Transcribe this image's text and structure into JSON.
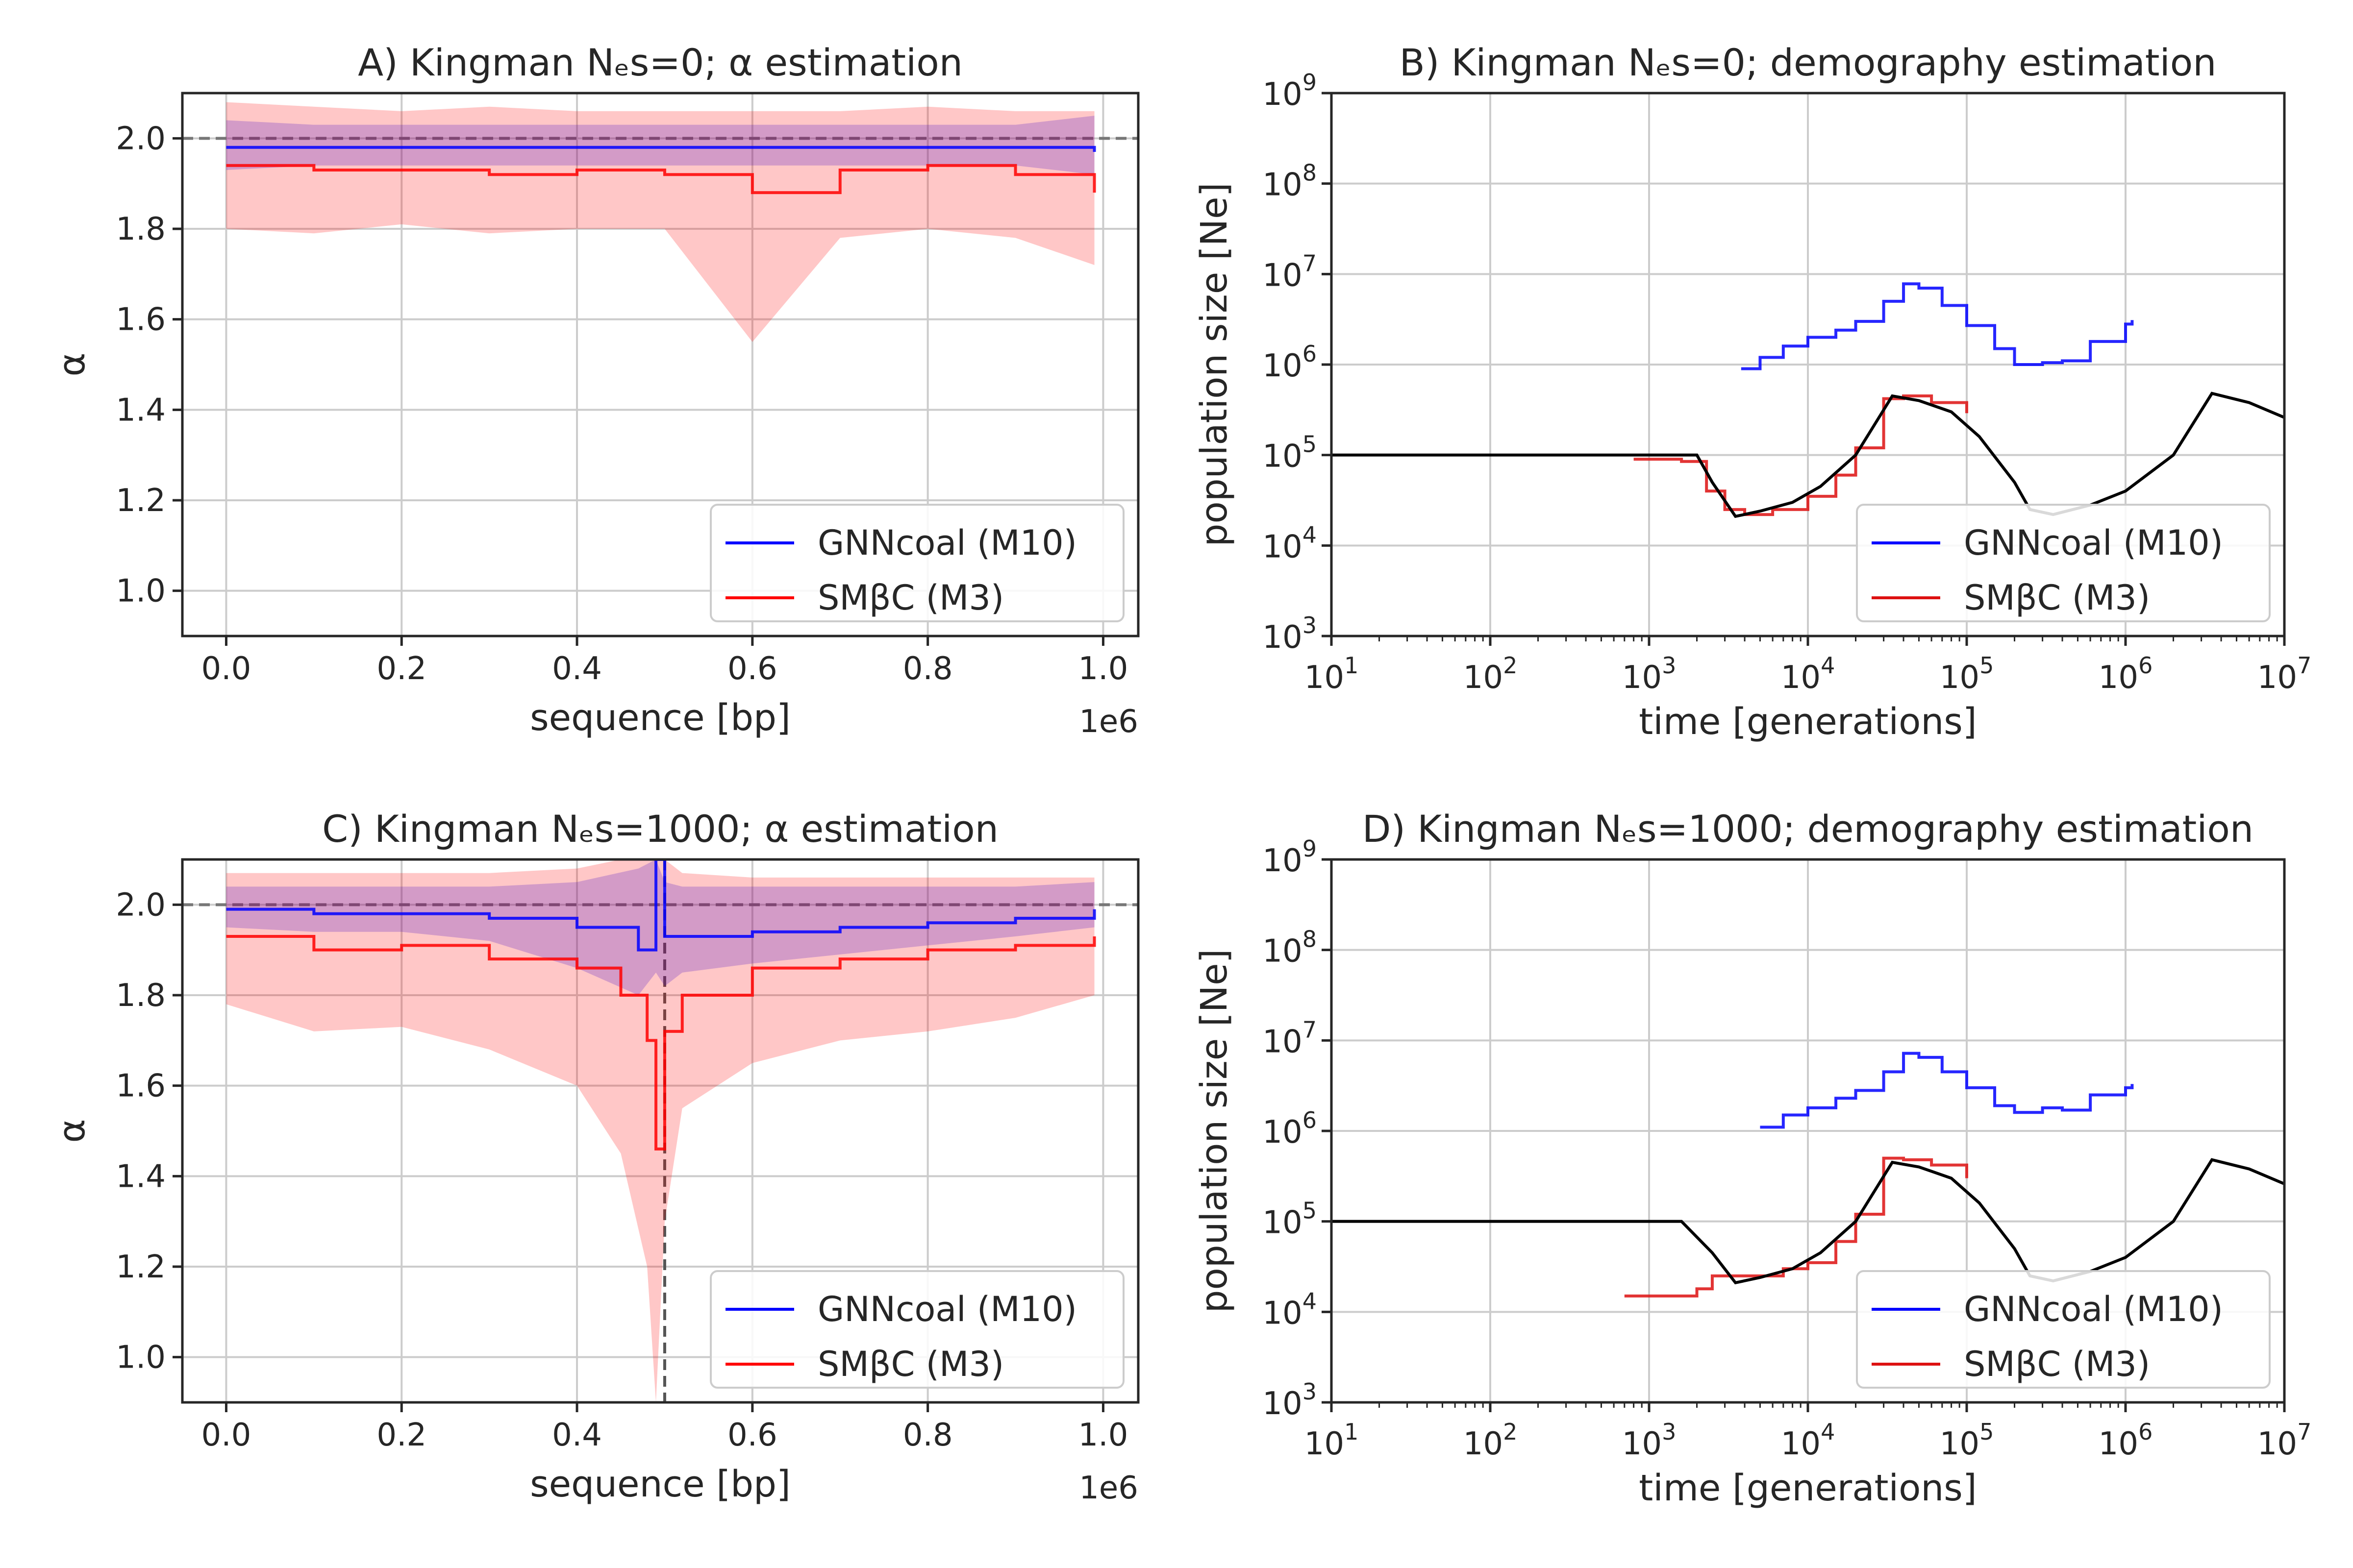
{
  "chart_data": [
    {
      "panel": "A",
      "type": "line",
      "title": "A) Kingman Nₑs=0; α estimation",
      "xlabel": "sequence [bp]",
      "ylabel": "α",
      "x_offset_label": "1e6",
      "xlim": [
        -0.05,
        1.04
      ],
      "ylim": [
        0.9,
        2.1
      ],
      "xticks": [
        "0.0",
        "0.2",
        "0.4",
        "0.6",
        "0.8",
        "1.0"
      ],
      "yticks": [
        "1.0",
        "1.2",
        "1.4",
        "1.6",
        "1.8",
        "2.0"
      ],
      "grid": true,
      "legend_position": "lower right",
      "reference_lines": [
        {
          "orientation": "horizontal",
          "value": 2.0,
          "style": "dashed",
          "color": "#777777"
        }
      ],
      "series": [
        {
          "name": "GNNcoal (M10)",
          "color": "#0000ff",
          "x": [
            0.0,
            0.1,
            0.2,
            0.3,
            0.4,
            0.5,
            0.6,
            0.7,
            0.8,
            0.9,
            0.99
          ],
          "values": [
            1.98,
            1.98,
            1.98,
            1.98,
            1.98,
            1.98,
            1.98,
            1.98,
            1.98,
            1.98,
            1.97
          ],
          "band_low": [
            1.93,
            1.94,
            1.94,
            1.94,
            1.94,
            1.94,
            1.94,
            1.94,
            1.94,
            1.94,
            1.92
          ],
          "band_high": [
            2.04,
            2.03,
            2.03,
            2.03,
            2.03,
            2.03,
            2.03,
            2.03,
            2.03,
            2.03,
            2.05
          ]
        },
        {
          "name": "SMβC (M3)",
          "color": "#ff0000",
          "x": [
            0.0,
            0.1,
            0.2,
            0.3,
            0.4,
            0.5,
            0.6,
            0.7,
            0.8,
            0.9,
            0.99
          ],
          "values": [
            1.94,
            1.93,
            1.93,
            1.92,
            1.93,
            1.92,
            1.88,
            1.93,
            1.94,
            1.92,
            1.88
          ],
          "band_low": [
            1.8,
            1.79,
            1.81,
            1.79,
            1.8,
            1.8,
            1.55,
            1.78,
            1.8,
            1.78,
            1.72
          ],
          "band_high": [
            2.08,
            2.07,
            2.06,
            2.07,
            2.06,
            2.06,
            2.06,
            2.06,
            2.07,
            2.06,
            2.06
          ]
        }
      ]
    },
    {
      "panel": "B",
      "type": "line",
      "title": "B) Kingman Nₑs=0; demography estimation",
      "xlabel": "time [generations]",
      "ylabel": "population size [Ne]",
      "xscale": "log",
      "yscale": "log",
      "xlim": [
        10,
        10000000
      ],
      "ylim": [
        1000,
        1000000000
      ],
      "xticks": [
        "10^1",
        "10^2",
        "10^3",
        "10^4",
        "10^5",
        "10^6",
        "10^7"
      ],
      "yticks": [
        "10^3",
        "10^4",
        "10^5",
        "10^6",
        "10^7",
        "10^8",
        "10^9"
      ],
      "grid": true,
      "legend_position": "lower right",
      "series": [
        {
          "name": "GNNcoal (M10)",
          "color": "#0000ff",
          "x": [
            3800,
            5000,
            7000,
            10000,
            15000,
            20000,
            30000,
            40000,
            50000,
            70000,
            100000,
            150000,
            200000,
            300000,
            400000,
            600000,
            1000000,
            1100000
          ],
          "values": [
            900000,
            1200000,
            1600000,
            2000000,
            2400000,
            3000000,
            5000000,
            7800000,
            7000000,
            4500000,
            2700000,
            1500000,
            1000000,
            1050000,
            1100000,
            1800000,
            2800000,
            3100000
          ]
        },
        {
          "name": "SMβC (M3)",
          "color": "#dd1111",
          "x": [
            800,
            1600,
            2300,
            3000,
            4000,
            6000,
            10000,
            15000,
            20000,
            30000,
            40000,
            60000,
            100000
          ],
          "values": [
            90000,
            85000,
            40000,
            25000,
            22000,
            25000,
            35000,
            60000,
            120000,
            420000,
            450000,
            380000,
            290000
          ]
        },
        {
          "name": "",
          "color": "#000000",
          "x": [
            10,
            2000,
            2500,
            3500,
            5000,
            8000,
            12000,
            20000,
            34000,
            50000,
            80000,
            120000,
            200000,
            250000,
            350000,
            600000,
            1000000,
            2000000,
            3500000,
            6000000,
            10000000
          ],
          "values": [
            100000,
            100000,
            50000,
            21000,
            24000,
            30000,
            45000,
            100000,
            450000,
            400000,
            300000,
            160000,
            50000,
            25000,
            22000,
            28000,
            40000,
            100000,
            480000,
            380000,
            260000
          ]
        }
      ]
    },
    {
      "panel": "C",
      "type": "line",
      "title": "C) Kingman Nₑs=1000; α estimation",
      "xlabel": "sequence [bp]",
      "ylabel": "α",
      "x_offset_label": "1e6",
      "xlim": [
        -0.05,
        1.04
      ],
      "ylim": [
        0.9,
        2.1
      ],
      "xticks": [
        "0.0",
        "0.2",
        "0.4",
        "0.6",
        "0.8",
        "1.0"
      ],
      "yticks": [
        "1.0",
        "1.2",
        "1.4",
        "1.6",
        "1.8",
        "2.0"
      ],
      "grid": true,
      "legend_position": "lower right",
      "reference_lines": [
        {
          "orientation": "horizontal",
          "value": 2.0,
          "style": "dashed",
          "color": "#777777"
        },
        {
          "orientation": "vertical",
          "value": 0.5,
          "style": "dashed",
          "color": "#555555"
        }
      ],
      "series": [
        {
          "name": "GNNcoal (M10)",
          "color": "#0000ff",
          "x": [
            0.0,
            0.1,
            0.2,
            0.3,
            0.4,
            0.47,
            0.49,
            0.5,
            0.52,
            0.6,
            0.7,
            0.8,
            0.9,
            0.99
          ],
          "values": [
            1.99,
            1.98,
            1.98,
            1.97,
            1.95,
            1.9,
            2.1,
            1.93,
            1.93,
            1.94,
            1.95,
            1.96,
            1.97,
            1.99
          ],
          "band_low": [
            1.95,
            1.94,
            1.94,
            1.92,
            1.86,
            1.8,
            1.85,
            1.82,
            1.85,
            1.87,
            1.89,
            1.91,
            1.93,
            1.95
          ],
          "band_high": [
            2.04,
            2.04,
            2.04,
            2.04,
            2.05,
            2.08,
            2.1,
            2.05,
            2.04,
            2.04,
            2.04,
            2.04,
            2.04,
            2.05
          ]
        },
        {
          "name": "SMβC (M3)",
          "color": "#ff0000",
          "x": [
            0.0,
            0.1,
            0.2,
            0.3,
            0.4,
            0.45,
            0.48,
            0.49,
            0.5,
            0.52,
            0.6,
            0.7,
            0.8,
            0.9,
            0.99
          ],
          "values": [
            1.93,
            1.9,
            1.91,
            1.88,
            1.86,
            1.8,
            1.7,
            1.46,
            1.72,
            1.8,
            1.86,
            1.88,
            1.9,
            1.91,
            1.93
          ],
          "band_low": [
            1.78,
            1.72,
            1.73,
            1.68,
            1.6,
            1.45,
            1.2,
            0.9,
            1.3,
            1.55,
            1.65,
            1.7,
            1.72,
            1.75,
            1.8
          ],
          "band_high": [
            2.07,
            2.07,
            2.07,
            2.07,
            2.08,
            2.1,
            2.1,
            2.1,
            2.1,
            2.07,
            2.06,
            2.06,
            2.06,
            2.06,
            2.06
          ]
        }
      ]
    },
    {
      "panel": "D",
      "type": "line",
      "title": "D) Kingman Nₑs=1000; demography estimation",
      "xlabel": "time [generations]",
      "ylabel": "population size [Ne]",
      "xscale": "log",
      "yscale": "log",
      "xlim": [
        10,
        10000000
      ],
      "ylim": [
        1000,
        1000000000
      ],
      "xticks": [
        "10^1",
        "10^2",
        "10^3",
        "10^4",
        "10^5",
        "10^6",
        "10^7"
      ],
      "yticks": [
        "10^3",
        "10^4",
        "10^5",
        "10^6",
        "10^7",
        "10^8",
        "10^9"
      ],
      "grid": true,
      "legend_position": "lower right",
      "series": [
        {
          "name": "GNNcoal (M10)",
          "color": "#0000ff",
          "x": [
            5000,
            7000,
            10000,
            15000,
            20000,
            30000,
            40000,
            50000,
            70000,
            100000,
            150000,
            200000,
            300000,
            400000,
            600000,
            1000000,
            1100000
          ],
          "values": [
            1100000,
            1500000,
            1800000,
            2300000,
            2800000,
            4500000,
            7200000,
            6500000,
            4500000,
            3000000,
            1900000,
            1600000,
            1800000,
            1700000,
            2500000,
            3000000,
            3300000
          ]
        },
        {
          "name": "SMβC (M3)",
          "color": "#dd1111",
          "x": [
            700,
            1600,
            2000,
            2500,
            3500,
            5000,
            7000,
            10000,
            15000,
            20000,
            30000,
            40000,
            60000,
            100000
          ],
          "values": [
            15000,
            15000,
            18000,
            25000,
            25000,
            25000,
            30000,
            35000,
            60000,
            120000,
            500000,
            480000,
            420000,
            300000
          ]
        },
        {
          "name": "",
          "color": "#000000",
          "x": [
            10,
            1600,
            2500,
            3500,
            5000,
            8000,
            12000,
            20000,
            34000,
            50000,
            80000,
            120000,
            200000,
            250000,
            350000,
            600000,
            1000000,
            2000000,
            3500000,
            6000000,
            10000000
          ],
          "values": [
            100000,
            100000,
            45000,
            21000,
            24000,
            30000,
            45000,
            100000,
            450000,
            400000,
            300000,
            160000,
            50000,
            25000,
            22000,
            28000,
            40000,
            100000,
            480000,
            380000,
            260000
          ]
        }
      ]
    }
  ]
}
